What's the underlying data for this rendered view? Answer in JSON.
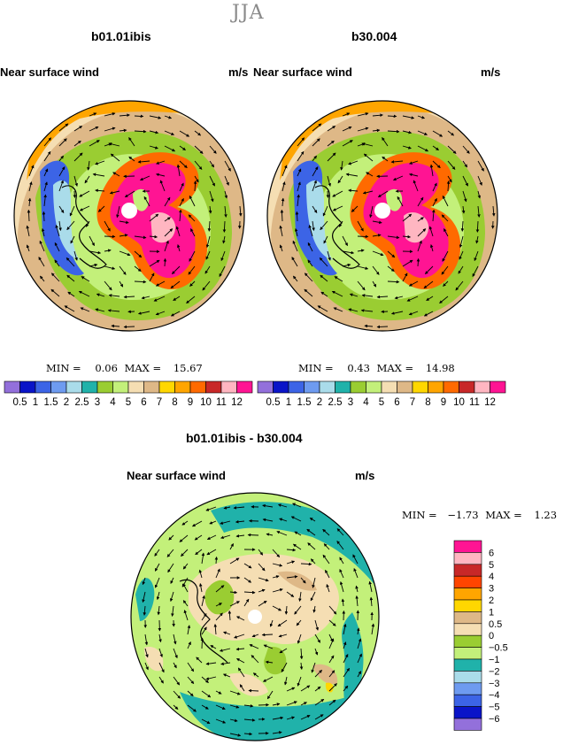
{
  "season": "JJA",
  "panels": [
    {
      "case": "b01.01ibis",
      "field": "Near surface wind",
      "unit": "m/s",
      "min_label": "MIN =",
      "min_value": "0.06",
      "max_label": "MAX =",
      "max_value": "15.67"
    },
    {
      "case": "b30.004",
      "field": "Near surface wind",
      "unit": "m/s",
      "min_label": "MIN =",
      "min_value": "0.43",
      "max_label": "MAX =",
      "max_value": "14.98"
    }
  ],
  "difference": {
    "title": "b01.01ibis - b30.004",
    "field": "Near surface wind",
    "unit": "m/s",
    "min_label": "MIN =",
    "min_value": "−1.73",
    "max_label": "MAX =",
    "max_value": "1.23"
  },
  "abs_colorbar": {
    "labels": [
      "0.5",
      "1",
      "1.5",
      "2",
      "2.5",
      "3",
      "4",
      "5",
      "6",
      "7",
      "8",
      "9",
      "10",
      "11",
      "12"
    ],
    "colors": [
      "#9370db",
      "#0a14c8",
      "#3c64e6",
      "#6e9bf0",
      "#aadcea",
      "#20b2aa",
      "#9acd32",
      "#c3f07a",
      "#f5deb3",
      "#deb887",
      "#ffd700",
      "#ffa500",
      "#ff6a00",
      "#c82828",
      "#ffb6c1",
      "#ff1493"
    ]
  },
  "diff_colorbar": {
    "labels": [
      "6",
      "5",
      "4",
      "3",
      "2",
      "1",
      "0.5",
      "0",
      "−0.5",
      "−1",
      "−2",
      "−3",
      "−4",
      "−5",
      "−6"
    ],
    "colors": [
      "#ff1493",
      "#ffb6c1",
      "#c82828",
      "#ff4500",
      "#ffa500",
      "#ffd700",
      "#deb887",
      "#f5deb3",
      "#9acd32",
      "#c3f07a",
      "#20b2aa",
      "#aadcea",
      "#6e9bf0",
      "#3c64e6",
      "#0a14c8",
      "#9370db"
    ]
  }
}
